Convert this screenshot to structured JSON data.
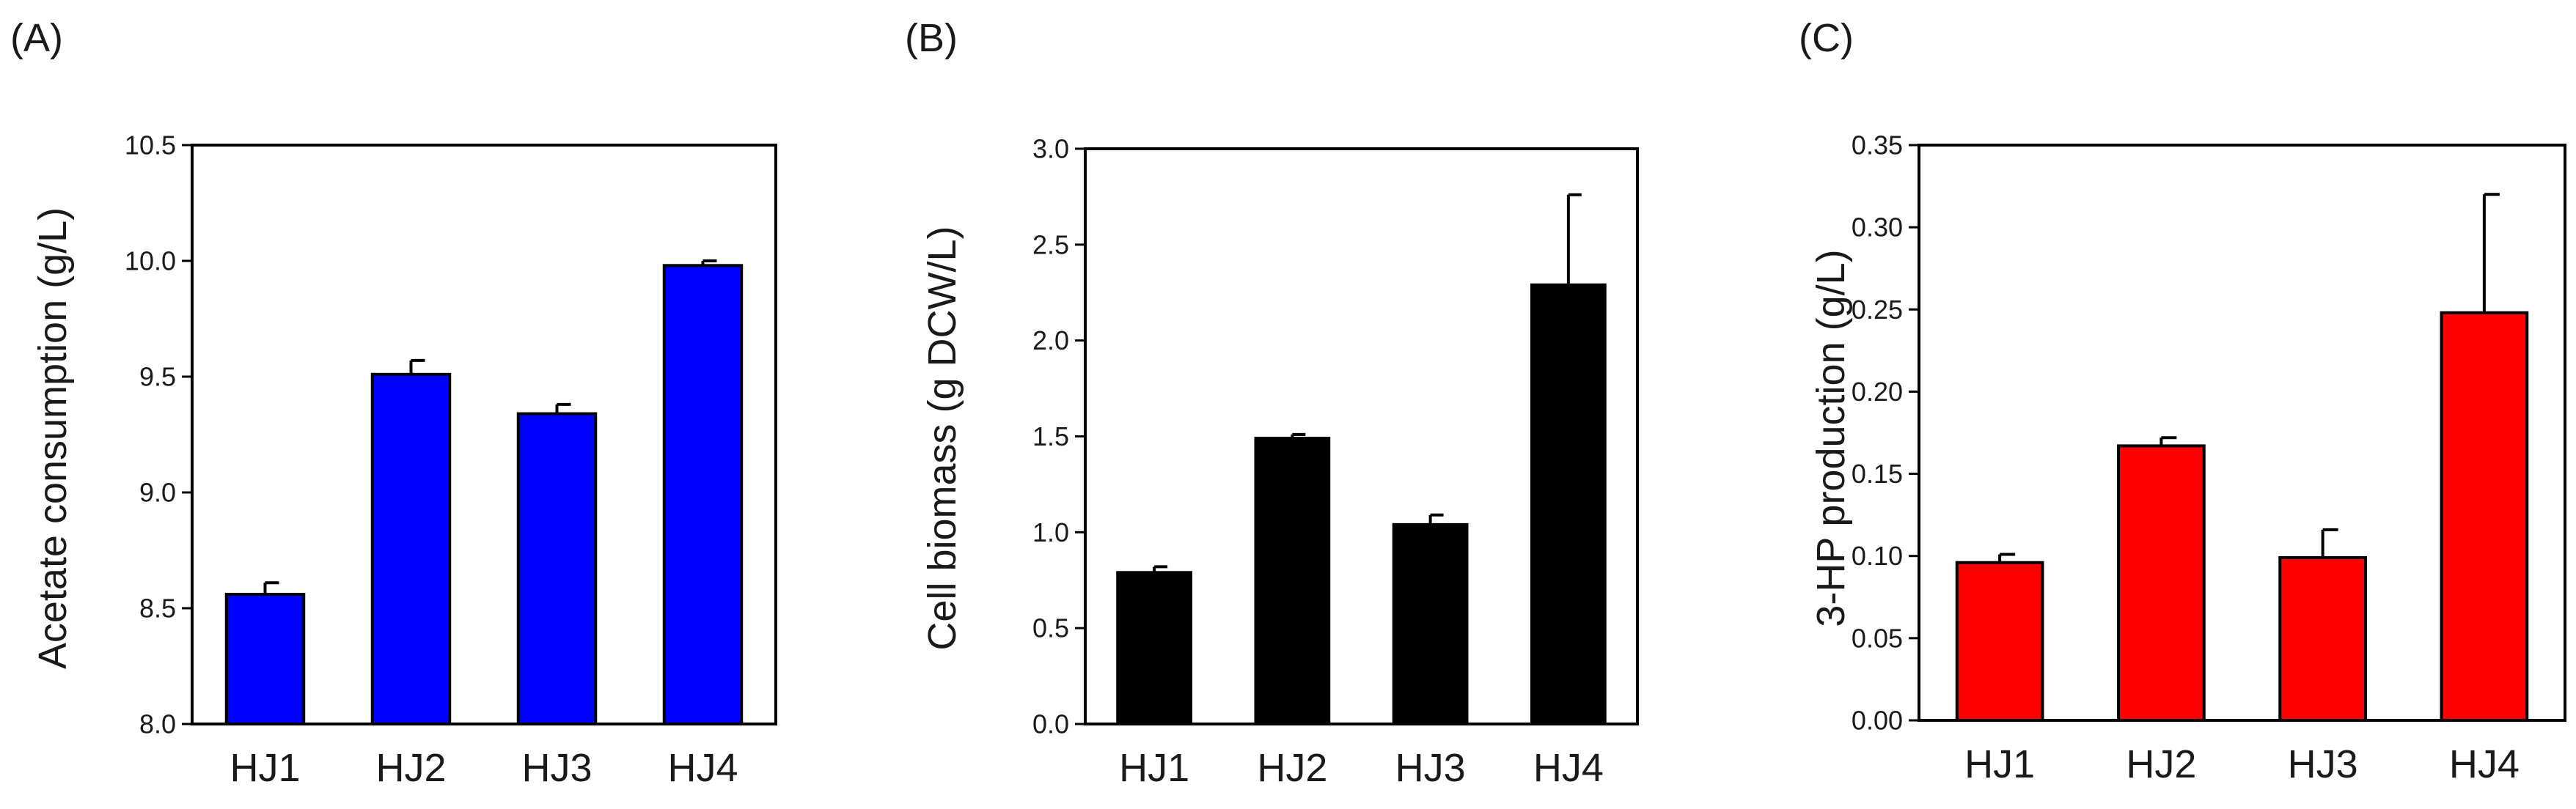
{
  "chart_data": [
    {
      "type": "bar",
      "panel_label": "(A)",
      "ylabel": "Acetate consumption (g/L)",
      "xlabel": "",
      "categories": [
        "HJ1",
        "HJ2",
        "HJ3",
        "HJ4"
      ],
      "values": [
        8.56,
        9.51,
        9.34,
        9.98
      ],
      "errors": [
        0.05,
        0.06,
        0.04,
        0.02
      ],
      "ylim": [
        8.0,
        10.5
      ],
      "yticks": [
        "8.0",
        "8.5",
        "9.0",
        "9.5",
        "10.0",
        "10.5"
      ],
      "bar_color": "#0000ff"
    },
    {
      "type": "bar",
      "panel_label": "(B)",
      "ylabel": "Cell biomass (g DCW/L)",
      "xlabel": "",
      "categories": [
        "HJ1",
        "HJ2",
        "HJ3",
        "HJ4"
      ],
      "values": [
        0.79,
        1.49,
        1.04,
        2.29
      ],
      "errors": [
        0.03,
        0.02,
        0.05,
        0.47
      ],
      "ylim": [
        0.0,
        3.0
      ],
      "yticks": [
        "0.0",
        "0.5",
        "1.0",
        "1.5",
        "2.0",
        "2.5",
        "3.0"
      ],
      "bar_color": "#000000"
    },
    {
      "type": "bar",
      "panel_label": "(C)",
      "ylabel": "3-HP production (g/L)",
      "xlabel": "",
      "categories": [
        "HJ1",
        "HJ2",
        "HJ3",
        "HJ4"
      ],
      "values": [
        0.096,
        0.167,
        0.099,
        0.248
      ],
      "errors": [
        0.005,
        0.005,
        0.017,
        0.072
      ],
      "ylim": [
        0.0,
        0.35
      ],
      "yticks": [
        "0.00",
        "0.05",
        "0.10",
        "0.15",
        "0.20",
        "0.25",
        "0.30",
        "0.35"
      ],
      "bar_color": "#ff0000"
    }
  ]
}
